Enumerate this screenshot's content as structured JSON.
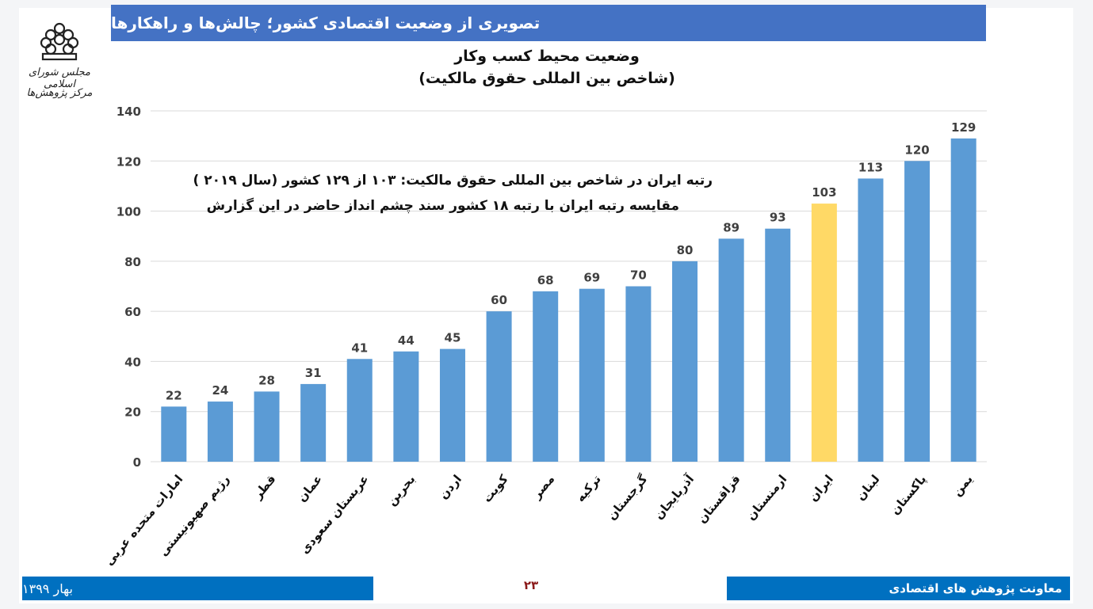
{
  "header": {
    "title": "تصویری از وضعیت اقتصادی کشور؛ چالش‌ها و راهکارها"
  },
  "logo": {
    "line1": "مجلس شورای اسلامی",
    "line2": "مرکز پژوهش‌ها"
  },
  "chart_data": {
    "type": "bar",
    "title": "وضعیت محیط کسب وکار",
    "subtitle": "(شاخص بین المللی حقوق مالکیت)",
    "categories": [
      "امارات متحده عربی",
      "رژیم صهیونیستی",
      "قطر",
      "عمان",
      "عربستان سعودی",
      "بحرین",
      "اردن",
      "کویت",
      "مصر",
      "ترکیه",
      "گرجستان",
      "آذربایجان",
      "قزاقستان",
      "ارمنستان",
      "ایران",
      "لبنان",
      "پاکستان",
      "یمن"
    ],
    "values": [
      22,
      24,
      28,
      31,
      41,
      44,
      45,
      60,
      68,
      69,
      70,
      80,
      89,
      93,
      103,
      113,
      120,
      129
    ],
    "highlight_category": "ایران",
    "ylim": [
      0,
      140
    ],
    "yticks": [
      0,
      20,
      40,
      60,
      80,
      100,
      120,
      140
    ],
    "grid": true,
    "xlabel": "",
    "ylabel": "",
    "colors": {
      "bar": "#5b9bd5",
      "highlight": "#ffd966",
      "grid": "#d9d9d9",
      "label": "#404040"
    },
    "annotations": [
      "رتبه ایران در شاخص بین المللی حقوق مالکیت: ۱۰۳ از ۱۲۹ کشور (سال ۲۰۱۹ )",
      "مقایسه رتبه ایران با رتبه ۱۸ کشور سند چشم انداز حاضر در این گزارش"
    ]
  },
  "footer": {
    "left": "بهار ۱۳۹۹",
    "page": "۲۳",
    "right": "معاونت پژوهش های اقتصادی"
  }
}
